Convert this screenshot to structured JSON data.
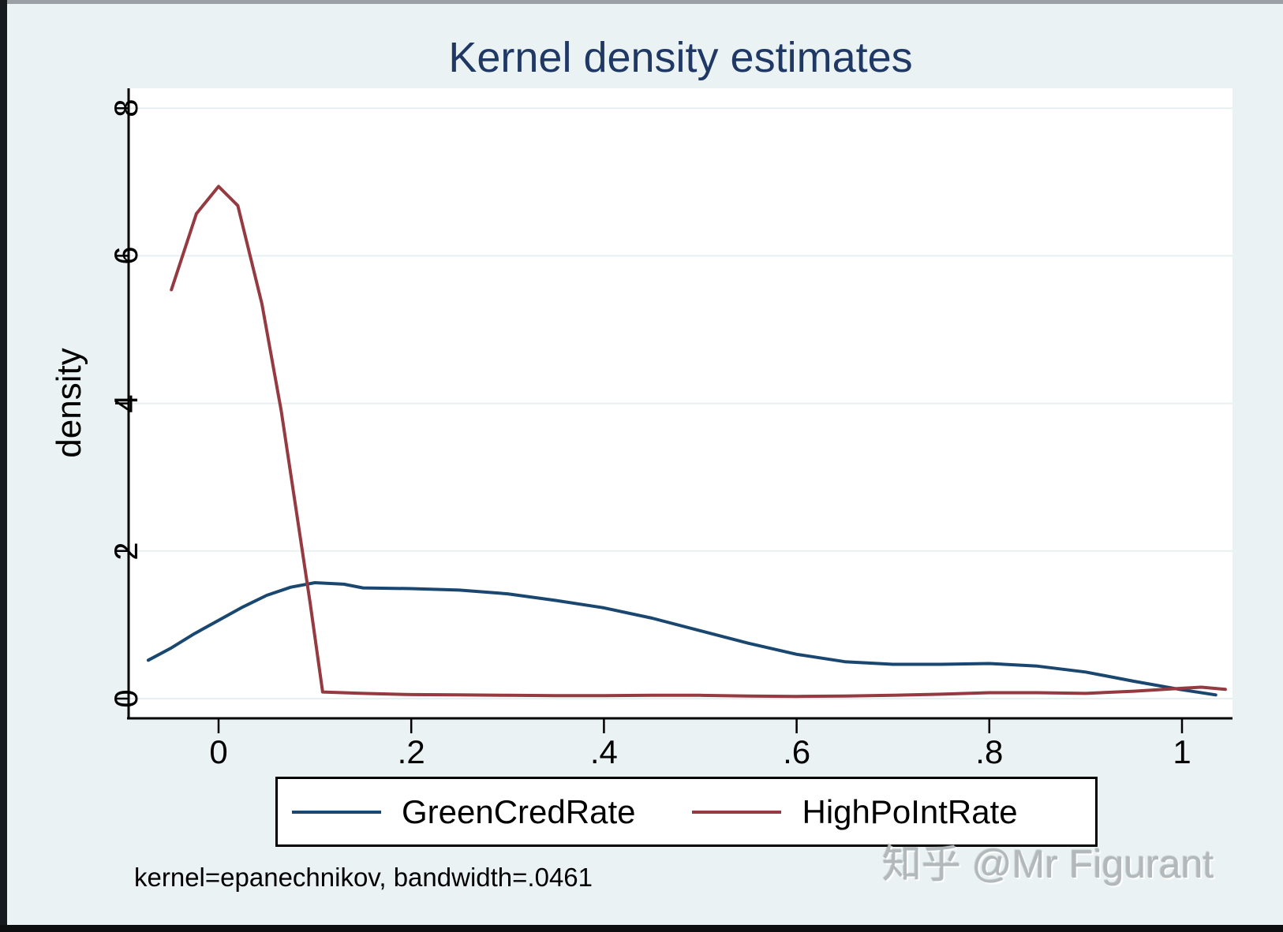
{
  "chart_data": {
    "type": "line",
    "title": "Kernel density estimates",
    "xlabel": "",
    "ylabel": "density",
    "note": "kernel=epanechnikov, bandwidth=.0461",
    "grid": "horizontal",
    "legend_position": "bottom",
    "xlim": [
      -0.09,
      1.05
    ],
    "ylim": [
      0,
      8.3
    ],
    "x_ticks": [
      "0",
      ".2",
      ".4",
      ".6",
      ".8",
      "1"
    ],
    "x_tick_values": [
      0,
      0.2,
      0.4,
      0.6,
      0.8,
      1
    ],
    "y_ticks": [
      "0",
      "2",
      "4",
      "6",
      "8"
    ],
    "y_tick_values": [
      0,
      2,
      4,
      6,
      8
    ],
    "series": [
      {
        "name": "GreenCredRate",
        "color": "#1a476f",
        "points": [
          [
            -0.073,
            0.52
          ],
          [
            -0.05,
            0.68
          ],
          [
            -0.025,
            0.88
          ],
          [
            0.0,
            1.06
          ],
          [
            0.025,
            1.24
          ],
          [
            0.05,
            1.4
          ],
          [
            0.075,
            1.51
          ],
          [
            0.1,
            1.57
          ],
          [
            0.13,
            1.55
          ],
          [
            0.15,
            1.5
          ],
          [
            0.2,
            1.49
          ],
          [
            0.25,
            1.47
          ],
          [
            0.3,
            1.42
          ],
          [
            0.35,
            1.33
          ],
          [
            0.4,
            1.23
          ],
          [
            0.45,
            1.09
          ],
          [
            0.5,
            0.92
          ],
          [
            0.55,
            0.75
          ],
          [
            0.6,
            0.6
          ],
          [
            0.65,
            0.5
          ],
          [
            0.7,
            0.465
          ],
          [
            0.75,
            0.465
          ],
          [
            0.8,
            0.475
          ],
          [
            0.85,
            0.44
          ],
          [
            0.9,
            0.36
          ],
          [
            0.95,
            0.235
          ],
          [
            1.0,
            0.12
          ],
          [
            1.035,
            0.05
          ]
        ]
      },
      {
        "name": "HighPoIntRate",
        "color": "#943a40",
        "points": [
          [
            -0.049,
            5.54
          ],
          [
            -0.023,
            6.57
          ],
          [
            0.0,
            6.94
          ],
          [
            0.02,
            6.68
          ],
          [
            0.045,
            5.35
          ],
          [
            0.065,
            3.9
          ],
          [
            0.08,
            2.6
          ],
          [
            0.095,
            1.3
          ],
          [
            0.108,
            0.09
          ],
          [
            0.15,
            0.07
          ],
          [
            0.2,
            0.055
          ],
          [
            0.25,
            0.05
          ],
          [
            0.3,
            0.045
          ],
          [
            0.35,
            0.04
          ],
          [
            0.4,
            0.04
          ],
          [
            0.45,
            0.045
          ],
          [
            0.5,
            0.045
          ],
          [
            0.55,
            0.035
          ],
          [
            0.6,
            0.03
          ],
          [
            0.65,
            0.035
          ],
          [
            0.7,
            0.045
          ],
          [
            0.75,
            0.06
          ],
          [
            0.8,
            0.08
          ],
          [
            0.85,
            0.08
          ],
          [
            0.9,
            0.07
          ],
          [
            0.95,
            0.1
          ],
          [
            1.0,
            0.14
          ],
          [
            1.02,
            0.155
          ],
          [
            1.045,
            0.125
          ]
        ]
      }
    ]
  },
  "watermark": "知乎 @Mr Figurant",
  "colors": {
    "background": "#eaf2f3",
    "plot_background": "#ffffff",
    "gridline": "#e8eff1",
    "axis": "#000000",
    "title": "#203864",
    "series_blue": "#1a476f",
    "series_maroon": "#943a40",
    "watermark": "#b3b8ba"
  }
}
